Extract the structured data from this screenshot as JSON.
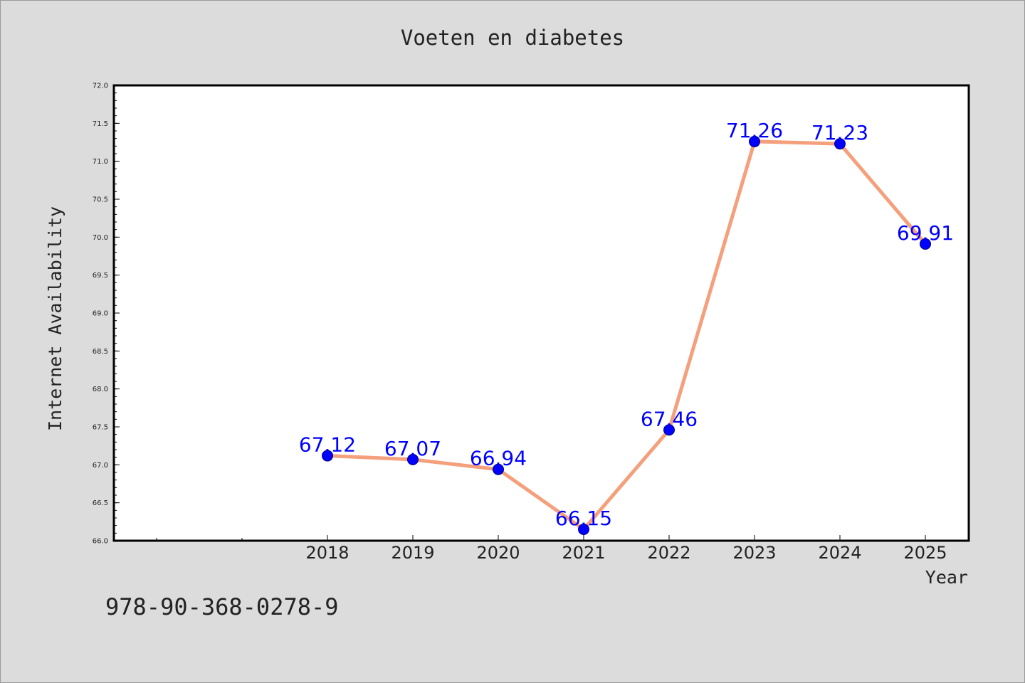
{
  "chart_data": {
    "type": "line",
    "title": "Voeten en diabetes",
    "xlabel": "Year",
    "ylabel": "Internet Availability",
    "categories": [
      "2018",
      "2019",
      "2020",
      "2021",
      "2022",
      "2023",
      "2024",
      "2025"
    ],
    "series": [
      {
        "values": [
          67.12,
          67.07,
          66.94,
          66.15,
          67.46,
          71.26,
          71.23,
          69.91
        ],
        "data_labels": [
          "67.12",
          "67.07",
          "66.94",
          "66.15",
          "67.46",
          "71.26",
          "71.23",
          "69.91"
        ]
      }
    ],
    "ylim": [
      66.0,
      72.0
    ],
    "y_ticks": [
      "66.0",
      "66.5",
      "67.0",
      "67.5",
      "68.0",
      "68.5",
      "69.0",
      "69.5",
      "70.0",
      "70.5",
      "71.0",
      "71.5",
      "72.0"
    ],
    "grid": false,
    "colors": {
      "background": "#dcdcdc",
      "plot_background": "#ffffff",
      "line": "#f4a07c",
      "marker": "#0000ff",
      "data_label": "#0000ff",
      "text": "#222222"
    }
  },
  "footer": {
    "isbn": "978-90-368-0278-9"
  }
}
